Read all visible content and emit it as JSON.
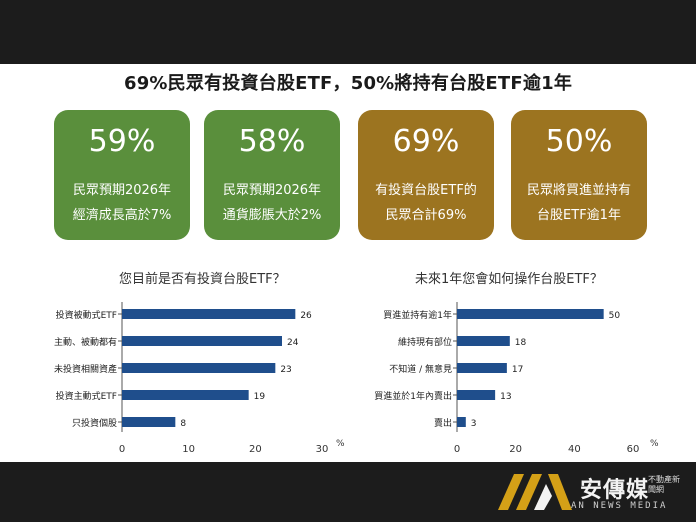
{
  "headline": "69%民眾有投資台股ETF，50%將持有台股ETF逾1年",
  "cards": [
    {
      "percent": "59%",
      "line1": "民眾預期2026年",
      "line2": "經濟成長高於7%",
      "color": "#5a8f3c"
    },
    {
      "percent": "58%",
      "line1": "民眾預期2026年",
      "line2": "通貨膨脹大於2%",
      "color": "#5a8f3c"
    },
    {
      "percent": "69%",
      "line1": "有投資台股ETF的",
      "line2": "民眾合計69%",
      "color": "#9c7420"
    },
    {
      "percent": "50%",
      "line1": "民眾將買進並持有",
      "line2": "台股ETF逾1年",
      "color": "#9c7420"
    }
  ],
  "chart_data": [
    {
      "type": "bar",
      "orientation": "horizontal",
      "title": "您目前是否有投資台股ETF？",
      "categories": [
        "投資被動式ETF",
        "主動、被動都有",
        "未投資相關資產",
        "投資主動式ETF",
        "只投資個股"
      ],
      "values": [
        26,
        24,
        23,
        19,
        8
      ],
      "xlim": [
        0,
        30
      ],
      "xticks": [
        "0",
        "10",
        "20",
        "30"
      ],
      "unit": "%",
      "bar_color": "#1f4e8c",
      "grid": false
    },
    {
      "type": "bar",
      "orientation": "horizontal",
      "title": "未來1年您會如何操作台股ETF？",
      "categories": [
        "買進並持有逾1年",
        "維持現有部位",
        "不知道 / 無意見",
        "買進並於1年內賣出",
        "賣出"
      ],
      "values": [
        50,
        18,
        17,
        13,
        3
      ],
      "xlim": [
        0,
        60
      ],
      "xticks": [
        "0",
        "20",
        "40",
        "60"
      ],
      "unit": "%",
      "bar_color": "#1f4e8c",
      "grid": false
    }
  ],
  "brand": {
    "chinese": "安傳媒",
    "side_text": "不動產新聞網",
    "english": "AN NEWS MEDIA",
    "gold": "#d4a017"
  }
}
